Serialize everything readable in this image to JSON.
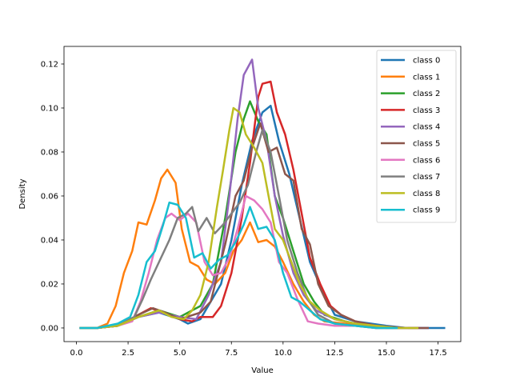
{
  "chart_data": {
    "type": "line",
    "title": "",
    "xlabel": "Value",
    "ylabel": "Density",
    "xlim": [
      -0.6,
      18.6
    ],
    "ylim": [
      -0.0062,
      0.128
    ],
    "xticks": [
      0.0,
      2.5,
      5.0,
      7.5,
      10.0,
      12.5,
      15.0,
      17.5
    ],
    "xtick_labels": [
      "0.0",
      "2.5",
      "5.0",
      "7.5",
      "10.0",
      "12.5",
      "15.0",
      "17.5"
    ],
    "yticks": [
      0.0,
      0.02,
      0.04,
      0.06,
      0.08,
      0.1,
      0.12
    ],
    "ytick_labels": [
      "0.00",
      "0.02",
      "0.04",
      "0.06",
      "0.08",
      "0.10",
      "0.12"
    ],
    "grid": false,
    "legend_position": "top-right",
    "series": [
      {
        "name": "class 0",
        "color": "#1f77b4",
        "points": [
          [
            0.2,
            0
          ],
          [
            1.0,
            0
          ],
          [
            2.0,
            0.001
          ],
          [
            3.0,
            0.005
          ],
          [
            4.0,
            0.007
          ],
          [
            5.0,
            0.004
          ],
          [
            5.4,
            0.002
          ],
          [
            6.0,
            0.004
          ],
          [
            7.0,
            0.02
          ],
          [
            7.5,
            0.04
          ],
          [
            8.0,
            0.065
          ],
          [
            8.5,
            0.085
          ],
          [
            9.0,
            0.098
          ],
          [
            9.4,
            0.101
          ],
          [
            9.8,
            0.085
          ],
          [
            10.3,
            0.07
          ],
          [
            10.8,
            0.05
          ],
          [
            11.3,
            0.03
          ],
          [
            12.0,
            0.015
          ],
          [
            12.5,
            0.006
          ],
          [
            13.5,
            0.003
          ],
          [
            15,
            0.001
          ],
          [
            16,
            0
          ],
          [
            17.8,
            0
          ]
        ]
      },
      {
        "name": "class 1",
        "color": "#ff7f0e",
        "points": [
          [
            0.2,
            0
          ],
          [
            1.0,
            0
          ],
          [
            1.5,
            0.002
          ],
          [
            1.9,
            0.01
          ],
          [
            2.3,
            0.025
          ],
          [
            2.7,
            0.035
          ],
          [
            3.0,
            0.048
          ],
          [
            3.4,
            0.047
          ],
          [
            3.8,
            0.058
          ],
          [
            4.1,
            0.068
          ],
          [
            4.4,
            0.072
          ],
          [
            4.8,
            0.066
          ],
          [
            5.1,
            0.045
          ],
          [
            5.5,
            0.03
          ],
          [
            5.9,
            0.028
          ],
          [
            6.3,
            0.022
          ],
          [
            6.7,
            0.02
          ],
          [
            7.2,
            0.025
          ],
          [
            7.6,
            0.035
          ],
          [
            8.0,
            0.04
          ],
          [
            8.4,
            0.048
          ],
          [
            8.8,
            0.039
          ],
          [
            9.2,
            0.04
          ],
          [
            9.6,
            0.037
          ],
          [
            10.0,
            0.03
          ],
          [
            10.5,
            0.02
          ],
          [
            11,
            0.012
          ],
          [
            11.5,
            0.006
          ],
          [
            12,
            0.003
          ],
          [
            13,
            0.002
          ],
          [
            14,
            0.001
          ],
          [
            15,
            0
          ],
          [
            16,
            0
          ]
        ]
      },
      {
        "name": "class 2",
        "color": "#2ca02c",
        "points": [
          [
            0.2,
            0
          ],
          [
            1.0,
            0
          ],
          [
            2.0,
            0.001
          ],
          [
            3.0,
            0.005
          ],
          [
            4.0,
            0.008
          ],
          [
            5.0,
            0.005
          ],
          [
            6.0,
            0.01
          ],
          [
            6.6,
            0.02
          ],
          [
            7.2,
            0.05
          ],
          [
            7.7,
            0.08
          ],
          [
            8.1,
            0.095
          ],
          [
            8.4,
            0.103
          ],
          [
            8.8,
            0.094
          ],
          [
            9.2,
            0.088
          ],
          [
            9.6,
            0.06
          ],
          [
            10.0,
            0.05
          ],
          [
            10.5,
            0.035
          ],
          [
            11.0,
            0.02
          ],
          [
            11.5,
            0.012
          ],
          [
            12.0,
            0.006
          ],
          [
            13,
            0.003
          ],
          [
            14,
            0.001
          ],
          [
            15,
            0
          ],
          [
            16,
            0
          ]
        ]
      },
      {
        "name": "class 3",
        "color": "#d62728",
        "points": [
          [
            0.2,
            0
          ],
          [
            1.0,
            0
          ],
          [
            2.0,
            0.001
          ],
          [
            3.0,
            0.006
          ],
          [
            3.6,
            0.009
          ],
          [
            4.2,
            0.007
          ],
          [
            5.0,
            0.004
          ],
          [
            5.6,
            0.003
          ],
          [
            6.0,
            0.005
          ],
          [
            6.6,
            0.005
          ],
          [
            7.0,
            0.01
          ],
          [
            7.5,
            0.025
          ],
          [
            8.0,
            0.05
          ],
          [
            8.4,
            0.075
          ],
          [
            8.8,
            0.105
          ],
          [
            9.0,
            0.111
          ],
          [
            9.4,
            0.112
          ],
          [
            9.7,
            0.098
          ],
          [
            10.1,
            0.088
          ],
          [
            10.5,
            0.072
          ],
          [
            10.9,
            0.052
          ],
          [
            11.3,
            0.032
          ],
          [
            11.8,
            0.02
          ],
          [
            12.3,
            0.01
          ],
          [
            12.8,
            0.006
          ],
          [
            13.5,
            0.003
          ],
          [
            14.5,
            0.001
          ],
          [
            15.5,
            0
          ],
          [
            16.5,
            0
          ]
        ]
      },
      {
        "name": "class 4",
        "color": "#9467bd",
        "points": [
          [
            0.2,
            0
          ],
          [
            1.0,
            0
          ],
          [
            2.0,
            0.001
          ],
          [
            3.0,
            0.005
          ],
          [
            4.0,
            0.007
          ],
          [
            5.0,
            0.005
          ],
          [
            5.8,
            0.004
          ],
          [
            6.4,
            0.015
          ],
          [
            7.0,
            0.03
          ],
          [
            7.4,
            0.06
          ],
          [
            7.8,
            0.095
          ],
          [
            8.1,
            0.115
          ],
          [
            8.5,
            0.122
          ],
          [
            8.8,
            0.1
          ],
          [
            9.2,
            0.085
          ],
          [
            9.6,
            0.06
          ],
          [
            10.0,
            0.042
          ],
          [
            10.5,
            0.025
          ],
          [
            11,
            0.015
          ],
          [
            11.6,
            0.008
          ],
          [
            12.5,
            0.004
          ],
          [
            13.5,
            0.002
          ],
          [
            14.5,
            0.001
          ],
          [
            15.5,
            0
          ],
          [
            17,
            0
          ]
        ]
      },
      {
        "name": "class 5",
        "color": "#8c564b",
        "points": [
          [
            0.2,
            0
          ],
          [
            1.0,
            0
          ],
          [
            2.0,
            0.001
          ],
          [
            3.0,
            0.006
          ],
          [
            3.7,
            0.009
          ],
          [
            4.3,
            0.007
          ],
          [
            5.0,
            0.004
          ],
          [
            6.0,
            0.007
          ],
          [
            6.5,
            0.012
          ],
          [
            7.2,
            0.038
          ],
          [
            7.7,
            0.06
          ],
          [
            8.1,
            0.067
          ],
          [
            8.5,
            0.082
          ],
          [
            8.9,
            0.093
          ],
          [
            9.3,
            0.08
          ],
          [
            9.7,
            0.082
          ],
          [
            10.1,
            0.07
          ],
          [
            10.5,
            0.067
          ],
          [
            10.9,
            0.045
          ],
          [
            11.3,
            0.038
          ],
          [
            11.7,
            0.02
          ],
          [
            12.2,
            0.01
          ],
          [
            12.8,
            0.006
          ],
          [
            13.5,
            0.003
          ],
          [
            14.5,
            0.001
          ],
          [
            16,
            0
          ],
          [
            17,
            0
          ]
        ]
      },
      {
        "name": "class 6",
        "color": "#e377c2",
        "points": [
          [
            0.2,
            0
          ],
          [
            1.0,
            0
          ],
          [
            2.0,
            0.001
          ],
          [
            2.7,
            0.003
          ],
          [
            3.1,
            0.012
          ],
          [
            3.5,
            0.025
          ],
          [
            3.9,
            0.04
          ],
          [
            4.3,
            0.05
          ],
          [
            4.6,
            0.052
          ],
          [
            5.0,
            0.049
          ],
          [
            5.4,
            0.052
          ],
          [
            5.8,
            0.048
          ],
          [
            6.2,
            0.03
          ],
          [
            6.6,
            0.024
          ],
          [
            7.0,
            0.025
          ],
          [
            7.4,
            0.032
          ],
          [
            7.8,
            0.045
          ],
          [
            8.2,
            0.06
          ],
          [
            8.6,
            0.058
          ],
          [
            9.0,
            0.054
          ],
          [
            9.4,
            0.048
          ],
          [
            9.8,
            0.03
          ],
          [
            10.2,
            0.025
          ],
          [
            10.7,
            0.013
          ],
          [
            11.2,
            0.003
          ],
          [
            11.7,
            0.002
          ],
          [
            12.5,
            0.001
          ],
          [
            13.5,
            0.001
          ],
          [
            14.5,
            0
          ],
          [
            16,
            0
          ]
        ]
      },
      {
        "name": "class 7",
        "color": "#7f7f7f",
        "points": [
          [
            0.2,
            0
          ],
          [
            1.0,
            0
          ],
          [
            2.0,
            0.001
          ],
          [
            2.8,
            0.005
          ],
          [
            3.2,
            0.013
          ],
          [
            3.6,
            0.022
          ],
          [
            4.0,
            0.03
          ],
          [
            4.5,
            0.04
          ],
          [
            4.9,
            0.05
          ],
          [
            5.3,
            0.052
          ],
          [
            5.6,
            0.055
          ],
          [
            5.9,
            0.044
          ],
          [
            6.3,
            0.05
          ],
          [
            6.7,
            0.043
          ],
          [
            7.1,
            0.047
          ],
          [
            7.5,
            0.052
          ],
          [
            7.9,
            0.057
          ],
          [
            8.3,
            0.065
          ],
          [
            8.7,
            0.08
          ],
          [
            9.0,
            0.09
          ],
          [
            9.4,
            0.08
          ],
          [
            9.8,
            0.06
          ],
          [
            10.2,
            0.04
          ],
          [
            10.7,
            0.025
          ],
          [
            11.2,
            0.013
          ],
          [
            11.7,
            0.006
          ],
          [
            12.5,
            0.002
          ],
          [
            13.5,
            0.001
          ],
          [
            14.5,
            0
          ],
          [
            16,
            0
          ]
        ]
      },
      {
        "name": "class 8",
        "color": "#bcbd22",
        "points": [
          [
            0.2,
            0
          ],
          [
            1.0,
            0
          ],
          [
            2.0,
            0.001
          ],
          [
            3.0,
            0.005
          ],
          [
            4.0,
            0.008
          ],
          [
            4.6,
            0.005
          ],
          [
            5.2,
            0.004
          ],
          [
            5.6,
            0.008
          ],
          [
            6.0,
            0.015
          ],
          [
            6.4,
            0.03
          ],
          [
            6.8,
            0.055
          ],
          [
            7.1,
            0.072
          ],
          [
            7.4,
            0.09
          ],
          [
            7.6,
            0.1
          ],
          [
            7.9,
            0.098
          ],
          [
            8.2,
            0.088
          ],
          [
            8.6,
            0.082
          ],
          [
            9.0,
            0.075
          ],
          [
            9.3,
            0.06
          ],
          [
            9.6,
            0.045
          ],
          [
            10.0,
            0.04
          ],
          [
            10.4,
            0.03
          ],
          [
            10.8,
            0.02
          ],
          [
            11.3,
            0.012
          ],
          [
            11.8,
            0.008
          ],
          [
            12.5,
            0.004
          ],
          [
            13.5,
            0.002
          ],
          [
            14.5,
            0.001
          ],
          [
            15.5,
            0
          ],
          [
            16.5,
            0
          ]
        ]
      },
      {
        "name": "class 9",
        "color": "#17becf",
        "points": [
          [
            0.2,
            0
          ],
          [
            1.0,
            0
          ],
          [
            2.0,
            0.002
          ],
          [
            2.6,
            0.005
          ],
          [
            3.0,
            0.015
          ],
          [
            3.4,
            0.03
          ],
          [
            3.8,
            0.035
          ],
          [
            4.2,
            0.047
          ],
          [
            4.5,
            0.057
          ],
          [
            4.9,
            0.056
          ],
          [
            5.3,
            0.05
          ],
          [
            5.7,
            0.032
          ],
          [
            6.1,
            0.034
          ],
          [
            6.5,
            0.027
          ],
          [
            6.9,
            0.031
          ],
          [
            7.3,
            0.033
          ],
          [
            7.7,
            0.039
          ],
          [
            8.1,
            0.047
          ],
          [
            8.4,
            0.055
          ],
          [
            8.8,
            0.045
          ],
          [
            9.2,
            0.046
          ],
          [
            9.6,
            0.04
          ],
          [
            10.0,
            0.025
          ],
          [
            10.4,
            0.014
          ],
          [
            10.8,
            0.012
          ],
          [
            11.3,
            0.008
          ],
          [
            11.8,
            0.004
          ],
          [
            12.5,
            0.002
          ],
          [
            13.5,
            0.001
          ],
          [
            14.5,
            0
          ],
          [
            15.5,
            0
          ]
        ]
      }
    ]
  }
}
